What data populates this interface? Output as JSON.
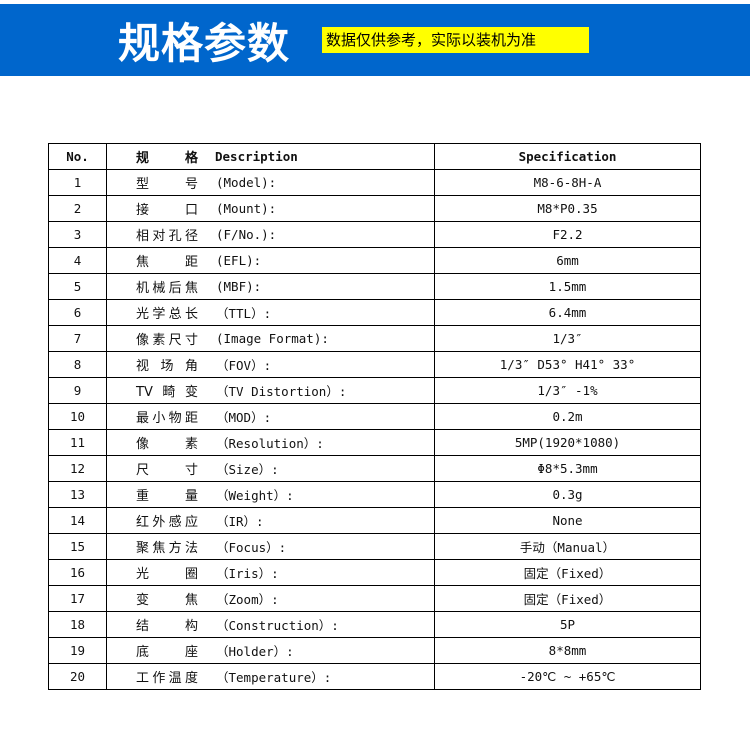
{
  "banner": {
    "title": "规格参数",
    "note": "数据仅供参考，实际以装机为准",
    "color": "#0066cc",
    "note_color": "#ffff00"
  },
  "table": {
    "headers": {
      "no": "No.",
      "desc_cn": "规 格",
      "desc_en": "Description",
      "spec": "Specification"
    },
    "rows": [
      {
        "no": "1",
        "cn": "型号",
        "en": "(Model):",
        "spec": "M8-6-8H-A"
      },
      {
        "no": "2",
        "cn": "接口",
        "en": "(Mount):",
        "spec": "M8*P0.35"
      },
      {
        "no": "3",
        "cn": "相对孔径",
        "en": "(F/No.):",
        "spec": "F2.2"
      },
      {
        "no": "4",
        "cn": "焦距",
        "en": "(EFL):",
        "spec": "6mm"
      },
      {
        "no": "5",
        "cn": "机械后焦",
        "en": "(MBF):",
        "spec": "1.5mm"
      },
      {
        "no": "6",
        "cn": "光学总长",
        "en": "（TTL）:",
        "spec": "6.4mm"
      },
      {
        "no": "7",
        "cn": "像素尺寸",
        "en": "(Image Format):",
        "spec": "1/3″"
      },
      {
        "no": "8",
        "cn": "视场角",
        "en": "（FOV）:",
        "spec": "1/3″ D53° H41° 33°"
      },
      {
        "no": "9",
        "cn": "TV畸变",
        "en": "（TV Distortion）:",
        "spec": "1/3″ -1%"
      },
      {
        "no": "10",
        "cn": "最小物距",
        "en": "（MOD）:",
        "spec": "0.2m"
      },
      {
        "no": "11",
        "cn": "像素",
        "en": "（Resolution）:",
        "spec": "5MP(1920*1080)"
      },
      {
        "no": "12",
        "cn": "尺寸",
        "en": "（Size）:",
        "spec": "Φ8*5.3mm"
      },
      {
        "no": "13",
        "cn": "重量",
        "en": "（Weight）:",
        "spec": "0.3g"
      },
      {
        "no": "14",
        "cn": "红外感应",
        "en": "（IR）:",
        "spec": "None"
      },
      {
        "no": "15",
        "cn": "聚焦方法",
        "en": "（Focus）:",
        "spec": "手动（Manual）"
      },
      {
        "no": "16",
        "cn": "光圈",
        "en": "（Iris）:",
        "spec": "固定（Fixed）"
      },
      {
        "no": "17",
        "cn": "变焦",
        "en": "（Zoom）:",
        "spec": "固定（Fixed）"
      },
      {
        "no": "18",
        "cn": "结构",
        "en": "（Construction）:",
        "spec": "5P"
      },
      {
        "no": "19",
        "cn": "底座",
        "en": "（Holder）:",
        "spec": "8*8mm"
      },
      {
        "no": "20",
        "cn": "工作温度",
        "en": "（Temperature）:",
        "spec": "-20℃ ~ +65℃"
      }
    ]
  }
}
